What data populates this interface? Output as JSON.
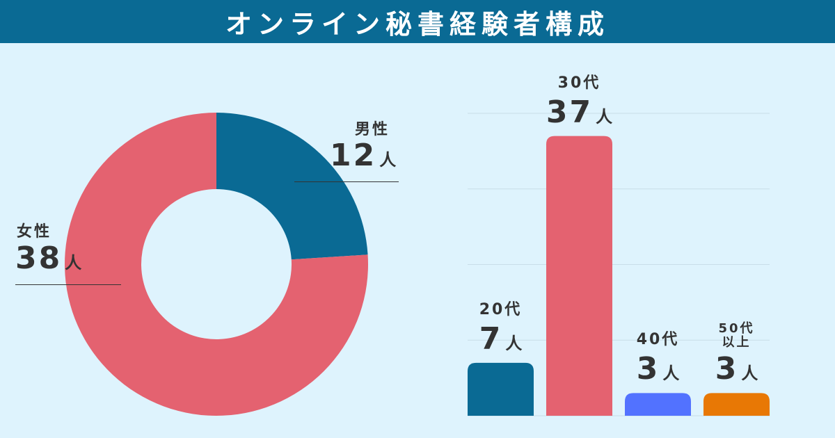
{
  "title": "オンライン秘書経験者構成",
  "colors": {
    "background": "#def3fd",
    "header": "#0a6a94",
    "text": "#333333",
    "grid": "#c8dde8"
  },
  "chart_data": [
    {
      "type": "pie",
      "donut": true,
      "slices": [
        {
          "label": "男性",
          "value": 12,
          "unit": "人",
          "color": "#0a6a94"
        },
        {
          "label": "女性",
          "value": 38,
          "unit": "人",
          "color": "#e46270"
        }
      ]
    },
    {
      "type": "bar",
      "categories": [
        "20代",
        "30代",
        "40代",
        "50代以上"
      ],
      "category_lines": [
        [
          "20代"
        ],
        [
          "30代"
        ],
        [
          "40代"
        ],
        [
          "50代",
          "以上"
        ]
      ],
      "values": [
        7,
        37,
        3,
        3
      ],
      "unit": "人",
      "colors": [
        "#0a6a94",
        "#e46270",
        "#5272ff",
        "#e87805"
      ],
      "ylim": [
        0,
        40
      ],
      "gridlines": [
        10,
        20,
        30,
        40
      ],
      "grid": true
    }
  ]
}
